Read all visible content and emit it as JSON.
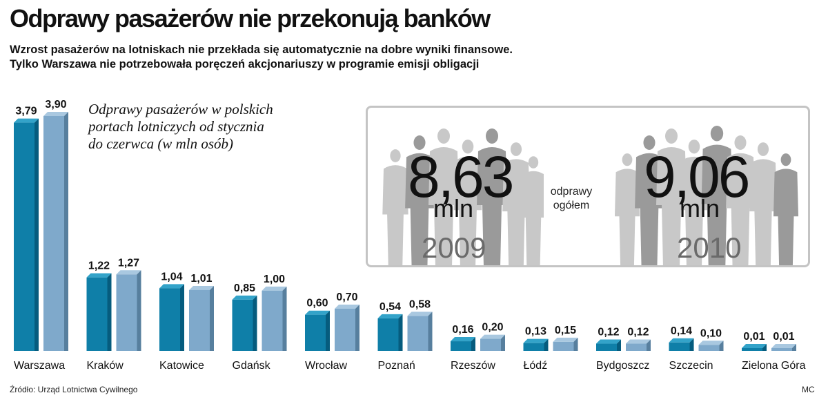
{
  "title": "Odprawy pasażerów nie przekonują banków",
  "subtitle_lines": [
    "Wzrost pasażerów na lotniskach nie przekłada się automatycznie na dobre wyniki finansowe.",
    "Tylko Warszawa nie potrzebowała poręczeń akcjonariuszy w programie emisji obligacji"
  ],
  "note": "Odprawy pasażerów w polskich portach lotniczych od stycznia do czerwca (w mln osób)",
  "summary": {
    "caption": "odprawy ogółem",
    "left": {
      "value": "8,63",
      "unit": "mln",
      "year": "2009"
    },
    "right": {
      "value": "9,06",
      "unit": "mln",
      "year": "2010"
    }
  },
  "chart_data": {
    "type": "bar",
    "categories": [
      "Warszawa",
      "Kraków",
      "Katowice",
      "Gdańsk",
      "Wrocław",
      "Poznań",
      "Rzeszów",
      "Łódź",
      "Bydgoszcz",
      "Szczecin",
      "Zielona Góra"
    ],
    "series": [
      {
        "key": "2009",
        "values": [
          3.79,
          1.22,
          1.04,
          0.85,
          0.6,
          0.54,
          0.16,
          0.13,
          0.12,
          0.14,
          0.01
        ]
      },
      {
        "key": "2010",
        "values": [
          3.9,
          1.27,
          1.01,
          1.0,
          0.7,
          0.58,
          0.2,
          0.15,
          0.12,
          0.1,
          0.01
        ]
      }
    ],
    "ylim": [
      0,
      3.9
    ],
    "decimal_separator": ","
  },
  "colors": {
    "bar_2009_front": "#0f7fa8",
    "bar_2009_side": "#065c7e",
    "bar_2009_top": "#33a3c9",
    "bar_2010_front": "#7fa9cb",
    "bar_2010_side": "#577f9e",
    "bar_2010_top": "#a9c8e0",
    "panel_border": "#c4c4c4",
    "crowd": "#c8c8c8",
    "crowd_front": "#9a9a9a"
  },
  "footer": {
    "source": "Źródło: Urząd Lotnictwa Cywilnego",
    "author": "MC"
  }
}
